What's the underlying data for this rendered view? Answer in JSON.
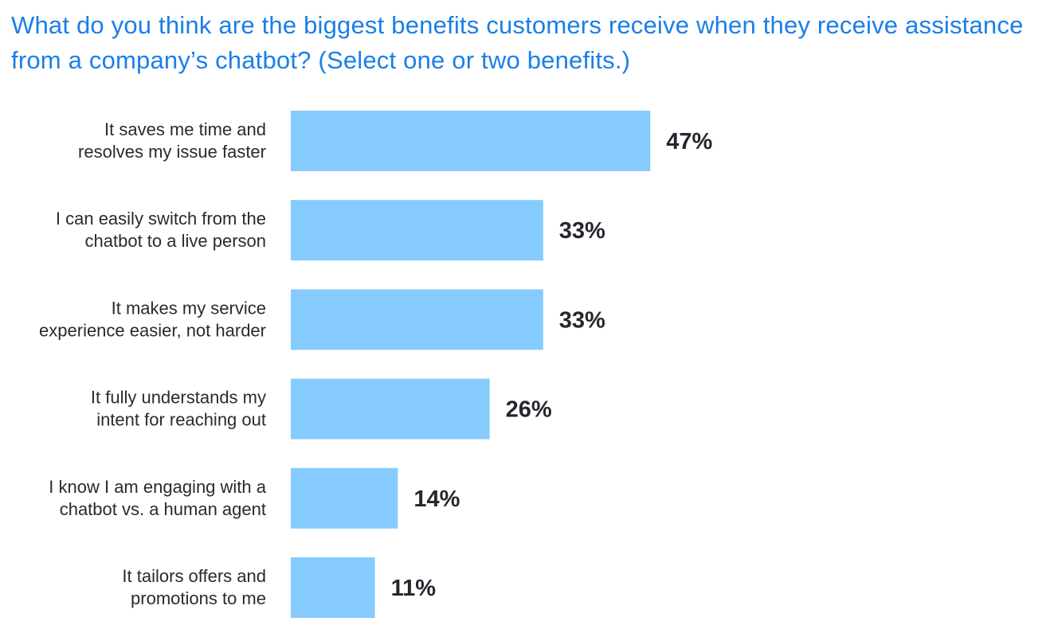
{
  "chart_data": {
    "type": "bar",
    "orientation": "horizontal",
    "title": "What do you think are the biggest benefits customers receive when they receive assistance from a company’s chatbot? (Select one or two benefits.)",
    "categories": [
      [
        "It saves me time and",
        "resolves my issue faster"
      ],
      [
        "I can easily switch from the",
        "chatbot to a live person"
      ],
      [
        "It makes my service",
        "experience easier, not harder"
      ],
      [
        "It fully understands my",
        "intent for reaching out"
      ],
      [
        "I know I am engaging with a",
        "chatbot vs. a human agent"
      ],
      [
        "It tailors offers and",
        "promotions to me"
      ]
    ],
    "values": [
      47,
      33,
      33,
      26,
      14,
      11
    ],
    "value_labels": [
      "47%",
      "33%",
      "33%",
      "26%",
      "14%",
      "11%"
    ],
    "unit": "%",
    "xlim": [
      0,
      100
    ],
    "grid": false,
    "bar_color": "#86cbfe",
    "title_color": "#1a7fe8",
    "label_color": "#2a2a30"
  }
}
